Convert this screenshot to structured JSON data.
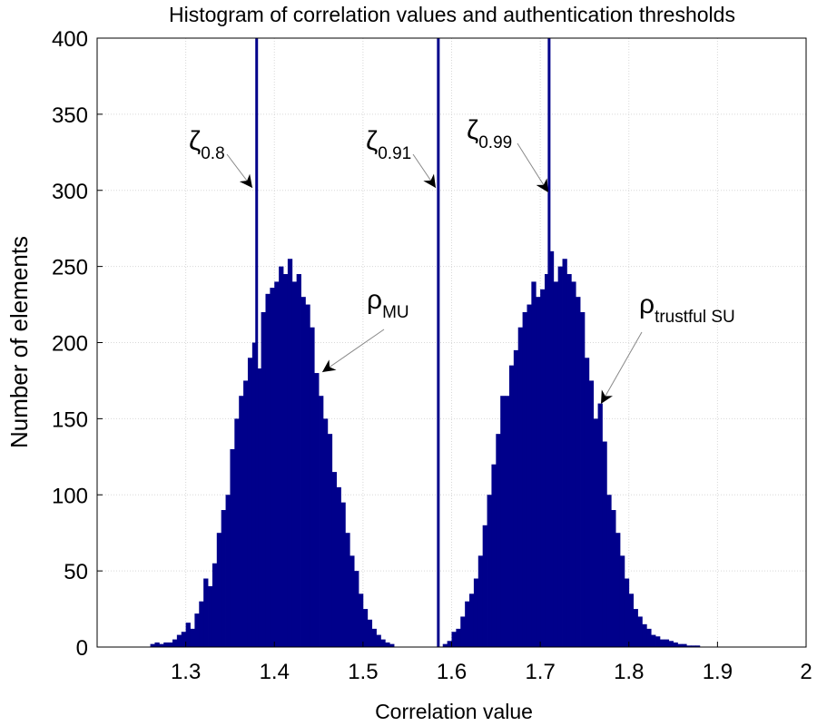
{
  "chart_data": {
    "type": "bar",
    "title": "Histogram of correlation values and authentication thresholds",
    "xlabel": "Correlation value",
    "ylabel": "Number of elements",
    "xlim": [
      1.2,
      2.0
    ],
    "ylim": [
      0,
      400
    ],
    "xticks": [
      "1.3",
      "1.4",
      "1.5",
      "1.6",
      "1.7",
      "1.8",
      "1.9",
      "2"
    ],
    "xtick_values": [
      1.3,
      1.4,
      1.5,
      1.6,
      1.7,
      1.8,
      1.9,
      2.0
    ],
    "yticks": [
      "0",
      "50",
      "100",
      "150",
      "200",
      "250",
      "300",
      "350",
      "400"
    ],
    "ytick_values": [
      0,
      50,
      100,
      150,
      200,
      250,
      300,
      350,
      400
    ],
    "grid": true,
    "bar_color": "#00008B",
    "bin_width": 0.005,
    "series": [
      {
        "name": "rho_MU",
        "start": 1.26,
        "values": [
          2,
          3,
          2,
          3,
          3,
          5,
          8,
          10,
          16,
          12,
          22,
          30,
          45,
          40,
          55,
          75,
          90,
          100,
          130,
          150,
          165,
          175,
          190,
          200,
          183,
          220,
          232,
          236,
          240,
          250,
          245,
          255,
          240,
          245,
          230,
          225,
          210,
          180,
          165,
          150,
          140,
          115,
          105,
          95,
          75,
          60,
          50,
          35,
          25,
          18,
          12,
          8,
          5,
          3,
          2
        ]
      },
      {
        "name": "rho_trustful_SU",
        "start": 1.59,
        "values": [
          2,
          4,
          10,
          12,
          20,
          30,
          35,
          45,
          60,
          80,
          100,
          120,
          140,
          165,
          165,
          185,
          195,
          210,
          220,
          225,
          240,
          230,
          235,
          245,
          260,
          240,
          250,
          255,
          245,
          240,
          230,
          220,
          190,
          175,
          150,
          160,
          135,
          100,
          90,
          75,
          60,
          45,
          35,
          25,
          20,
          15,
          12,
          8,
          7,
          5,
          5,
          4,
          3,
          2,
          2,
          1,
          1,
          1,
          0
        ]
      }
    ],
    "thresholds": [
      {
        "name": "zeta_0.8",
        "x": 1.38
      },
      {
        "name": "zeta_0.91",
        "x": 1.585
      },
      {
        "name": "zeta_0.99",
        "x": 1.71
      }
    ],
    "annotations": [
      {
        "symbol": "ζ",
        "sub": "0.8"
      },
      {
        "symbol": "ζ",
        "sub": "0.91"
      },
      {
        "symbol": "ζ",
        "sub": "0.99"
      },
      {
        "symbol": "ρ",
        "sub": "MU"
      },
      {
        "symbol": "ρ",
        "sub": "trustful SU"
      }
    ]
  }
}
